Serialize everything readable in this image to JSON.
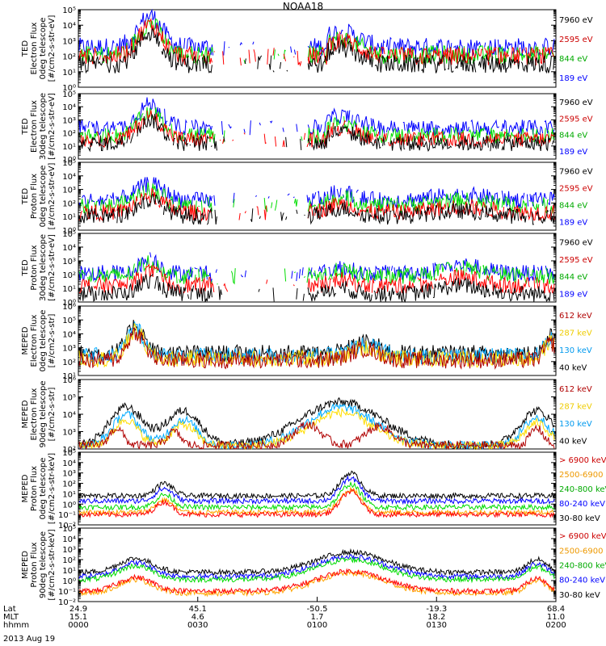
{
  "title": "NOAA18",
  "date": "2013 Aug 19",
  "x_axis": {
    "row_labels": [
      "Lat",
      "MLT",
      "hhmm"
    ],
    "ticks": [
      {
        "lat": "24.9",
        "mlt": "15.1",
        "time": "0000"
      },
      {
        "lat": "45.1",
        "mlt": "4.6",
        "time": "0030"
      },
      {
        "lat": "-50.5",
        "mlt": "1.7",
        "time": "0100"
      },
      {
        "lat": "-19.3",
        "mlt": "18.2",
        "time": "0130"
      },
      {
        "lat": "68.4",
        "mlt": "11.0",
        "time": "0200"
      }
    ]
  },
  "colors": {
    "black": "#000000",
    "blue": "#0000ff",
    "green": "#00dd00",
    "red": "#ff0000",
    "darkred": "#b00000",
    "yellow": "#ffdd00",
    "cyan": "#00aaff",
    "orange": "#ffa500"
  },
  "chart_data": [
    {
      "type": "line",
      "ylabel": [
        "TED",
        "Electron Flux",
        "0deg telescope",
        "[#/cm2-s-str-eV]"
      ],
      "ylim_exp": [
        0,
        5
      ],
      "tick_labels": [
        "10⁰",
        "10¹",
        "10²",
        "10³",
        "10⁴",
        "10⁵"
      ],
      "series": [
        {
          "name": "7960 eV",
          "color": "#000000",
          "text_color": "#000000",
          "profile": "ted_e0",
          "level": 1.5
        },
        {
          "name": "2595 eV",
          "color": "#ff0000",
          "text_color": "#cc0000",
          "profile": "ted_e0",
          "level": 2.0
        },
        {
          "name": "844 eV",
          "color": "#00dd00",
          "text_color": "#00aa00",
          "profile": "ted_e0",
          "level": 2.1
        },
        {
          "name": "189 eV",
          "color": "#0000ff",
          "text_color": "#0000ff",
          "profile": "ted_e0",
          "level": 2.6
        }
      ]
    },
    {
      "type": "line",
      "ylabel": [
        "TED",
        "Electron Flux",
        "30deg telescope",
        "[#/cm2-s-str-eV]"
      ],
      "ylim_exp": [
        0,
        5
      ],
      "tick_labels": [
        "10⁰",
        "10¹",
        "10²",
        "10³",
        "10⁴",
        "10⁵"
      ],
      "series": [
        {
          "name": "7960 eV",
          "color": "#000000",
          "text_color": "#000000",
          "profile": "ted_e30",
          "level": 1.2
        },
        {
          "name": "2595 eV",
          "color": "#ff0000",
          "text_color": "#cc0000",
          "profile": "ted_e30",
          "level": 1.5
        },
        {
          "name": "844 eV",
          "color": "#00dd00",
          "text_color": "#00aa00",
          "profile": "ted_e30",
          "level": 1.8
        },
        {
          "name": "189 eV",
          "color": "#0000ff",
          "text_color": "#0000ff",
          "profile": "ted_e30",
          "level": 2.4
        }
      ]
    },
    {
      "type": "line",
      "ylabel": [
        "TED",
        "Proton Flux",
        "0deg telescope",
        "[#/cm2-s-str-eV]"
      ],
      "ylim_exp": [
        0,
        5
      ],
      "tick_labels": [
        "10⁰",
        "10¹",
        "10²",
        "10³",
        "10⁴",
        "10⁵"
      ],
      "series": [
        {
          "name": "7960 eV",
          "color": "#000000",
          "text_color": "#000000",
          "profile": "ted_p0",
          "level": 1.0
        },
        {
          "name": "2595 eV",
          "color": "#ff0000",
          "text_color": "#cc0000",
          "profile": "ted_p0",
          "level": 1.3
        },
        {
          "name": "844 eV",
          "color": "#00dd00",
          "text_color": "#00aa00",
          "profile": "ted_p0",
          "level": 1.8
        },
        {
          "name": "189 eV",
          "color": "#0000ff",
          "text_color": "#0000ff",
          "profile": "ted_p0",
          "level": 2.2
        }
      ]
    },
    {
      "type": "line",
      "ylabel": [
        "TED",
        "Proton Flux",
        "30deg telescope",
        "[#/cm2-s-str-eV]"
      ],
      "ylim_exp": [
        0,
        5
      ],
      "tick_labels": [
        "10⁰",
        "10¹",
        "10²",
        "10³",
        "10⁴",
        "10⁵"
      ],
      "series": [
        {
          "name": "7960 eV",
          "color": "#000000",
          "text_color": "#000000",
          "profile": "ted_p30",
          "level": 0.6
        },
        {
          "name": "2595 eV",
          "color": "#ff0000",
          "text_color": "#cc0000",
          "profile": "ted_p30",
          "level": 1.2
        },
        {
          "name": "844 eV",
          "color": "#00dd00",
          "text_color": "#00aa00",
          "profile": "ted_p30",
          "level": 1.9
        },
        {
          "name": "189 eV",
          "color": "#0000ff",
          "text_color": "#0000ff",
          "profile": "ted_p30",
          "level": 2.1
        }
      ]
    },
    {
      "type": "line",
      "ylabel": [
        "MEPED",
        "Electron Flux",
        "0deg telescope",
        "[#/cm2-s-str]"
      ],
      "ylim_exp": [
        1,
        6
      ],
      "tick_labels": [
        "10¹",
        "10²",
        "10³",
        "10⁴",
        "10⁵",
        "10⁶"
      ],
      "series": [
        {
          "name": "612 keV",
          "color": "#b00000",
          "text_color": "#b00000",
          "profile": "mep_e0",
          "level": 2.1
        },
        {
          "name": "287 keV",
          "color": "#ffdd00",
          "text_color": "#eecc00",
          "profile": "mep_e0",
          "level": 2.2
        },
        {
          "name": "130 keV",
          "color": "#00aaff",
          "text_color": "#0099ee",
          "profile": "mep_e0",
          "level": 2.4
        },
        {
          "name": "40 keV",
          "color": "#000000",
          "text_color": "#000000",
          "profile": "mep_e0",
          "level": 2.6
        }
      ]
    },
    {
      "type": "line",
      "ylabel": [
        "MEPED",
        "Electron Flux",
        "90deg telescope",
        "[#/cm2-s-str]"
      ],
      "ylim_exp": [
        2,
        6
      ],
      "tick_labels": [
        "10²",
        "10³",
        "10⁴",
        "10⁵",
        "10⁶"
      ],
      "series": [
        {
          "name": "612 keV",
          "color": "#b00000",
          "text_color": "#b00000",
          "profile": "mep_e90_612",
          "level": 2.2
        },
        {
          "name": "287 keV",
          "color": "#ffdd00",
          "text_color": "#eecc00",
          "profile": "mep_e90_287",
          "level": 2.2
        },
        {
          "name": "130 keV",
          "color": "#00aaff",
          "text_color": "#0099ee",
          "profile": "mep_e90_130",
          "level": 2.2
        },
        {
          "name": "40 keV",
          "color": "#000000",
          "text_color": "#000000",
          "profile": "mep_e90_40",
          "level": 2.2
        }
      ]
    },
    {
      "type": "line",
      "ylabel": [
        "MEPED",
        "Proton Flux",
        "0deg telescope",
        "[#/cm2-s-str-keV]"
      ],
      "ylim_exp": [
        -2,
        5
      ],
      "tick_labels": [
        "10⁻²",
        "10⁻¹",
        "10⁰",
        "10¹",
        "10²",
        "10³",
        "10⁴",
        "10⁵"
      ],
      "series": [
        {
          "name": "> 6900 keV",
          "color": "#ff0000",
          "text_color": "#cc0000",
          "profile": "mep_p0",
          "level": -1.0
        },
        {
          "name": "2500-6900",
          "color": "#ffa500",
          "text_color": "#ee9900",
          "profile": "mep_p0",
          "level": -0.8
        },
        {
          "name": "240-800 keV",
          "color": "#00dd00",
          "text_color": "#00aa00",
          "profile": "mep_p0",
          "level": -0.3
        },
        {
          "name": "80-240 keV",
          "color": "#0000ff",
          "text_color": "#0000ff",
          "profile": "mep_p0",
          "level": 0.3
        },
        {
          "name": "30-80 keV",
          "color": "#000000",
          "text_color": "#000000",
          "profile": "mep_p0",
          "level": 0.8
        }
      ]
    },
    {
      "type": "line",
      "ylabel": [
        "MEPED",
        "Proton Flux",
        "90deg telescope",
        "[#/cm2-s-str-keV]"
      ],
      "ylim_exp": [
        -2,
        5
      ],
      "tick_labels": [
        "10⁻²",
        "10⁻¹",
        "10⁰",
        "10¹",
        "10²",
        "10³",
        "10⁴",
        "10⁵"
      ],
      "series": [
        {
          "name": "> 6900 keV",
          "color": "#ff0000",
          "text_color": "#cc0000",
          "profile": "mep_p90",
          "level": -1.0
        },
        {
          "name": "2500-6900",
          "color": "#ffa500",
          "text_color": "#ee9900",
          "profile": "mep_p90",
          "level": -1.2
        },
        {
          "name": "240-800 keV",
          "color": "#00dd00",
          "text_color": "#00aa00",
          "profile": "mep_p90",
          "level": 0.1
        },
        {
          "name": "80-240 keV",
          "color": "#0000ff",
          "text_color": "#0000ff",
          "profile": "mep_p90",
          "level": 0.4
        },
        {
          "name": "30-80 keV",
          "color": "#000000",
          "text_color": "#000000",
          "profile": "mep_p90",
          "level": 0.8
        }
      ]
    }
  ]
}
